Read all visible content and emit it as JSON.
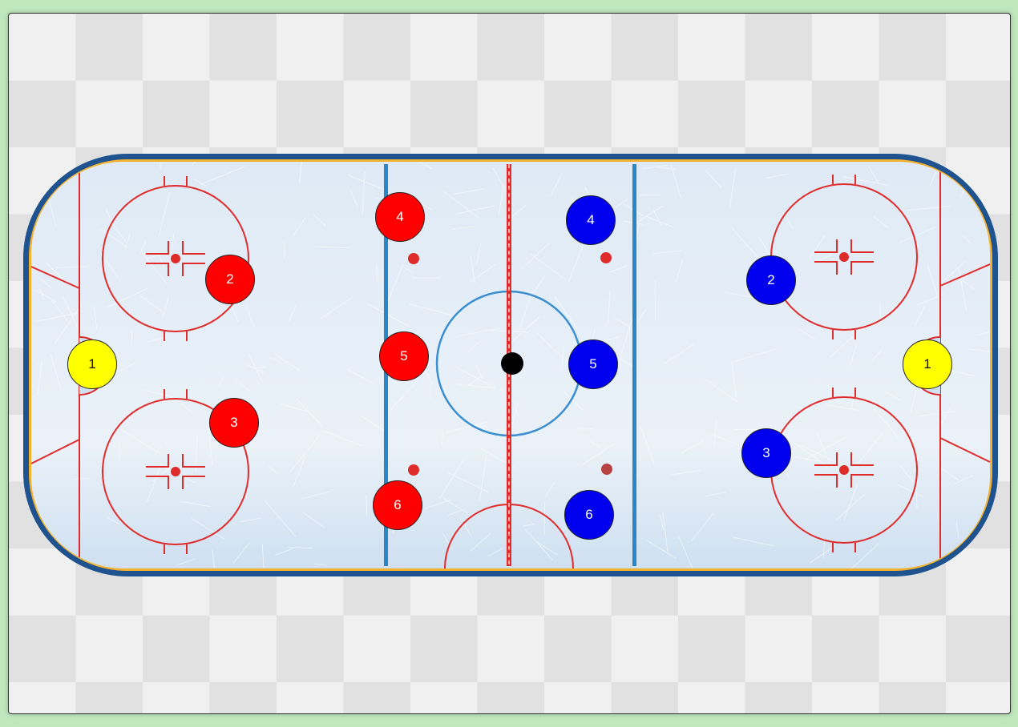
{
  "colors": {
    "board_background": "#bfe8bf",
    "ice": "#e8f0f8",
    "boards": "#1e5390",
    "kickplate": "#f3b12c",
    "red_line": "#e02b2b",
    "blue_line": "#2a86c6",
    "center_circle": "#3a8fd0",
    "team_red": "#ff0000",
    "team_blue": "#0000ee",
    "goalie": "#ffff00",
    "puck": "#000000"
  },
  "red_team": [
    {
      "label": "1",
      "role": "goalie"
    },
    {
      "label": "2"
    },
    {
      "label": "3"
    },
    {
      "label": "4"
    },
    {
      "label": "5"
    },
    {
      "label": "6"
    }
  ],
  "blue_team": [
    {
      "label": "1",
      "role": "goalie"
    },
    {
      "label": "2"
    },
    {
      "label": "3"
    },
    {
      "label": "4"
    },
    {
      "label": "5"
    },
    {
      "label": "6"
    }
  ]
}
